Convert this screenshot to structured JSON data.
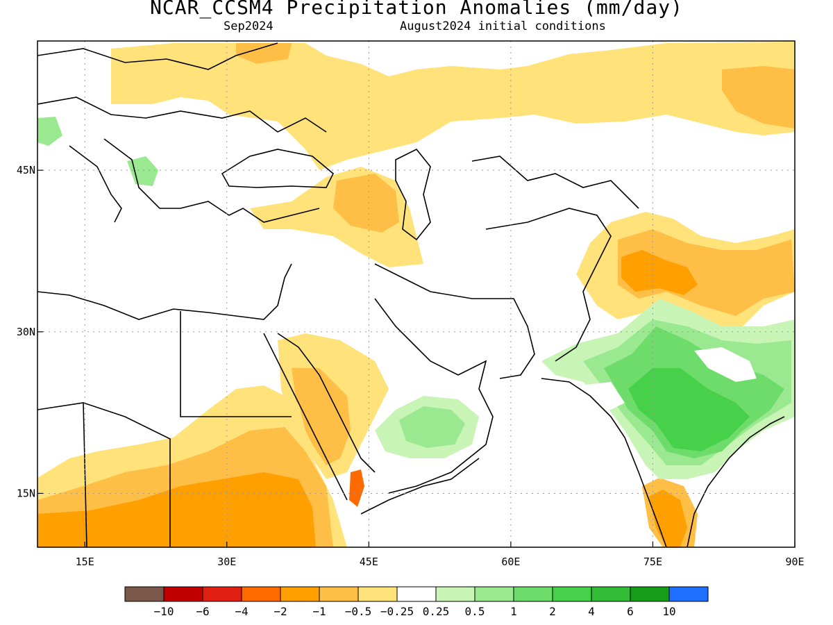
{
  "header": {
    "title": "NCAR_CCSM4 Precipitation Anomalies (mm/day)",
    "valid_month": "Sep2024",
    "init_conditions": "August2024 initial conditions"
  },
  "map": {
    "lon_range": [
      10,
      90
    ],
    "lat_range": [
      10,
      57
    ],
    "lon_ticks": [
      {
        "value": 15,
        "label": "15E"
      },
      {
        "value": 30,
        "label": "30E"
      },
      {
        "value": 45,
        "label": "45E"
      },
      {
        "value": 60,
        "label": "60E"
      },
      {
        "value": 75,
        "label": "75E"
      },
      {
        "value": 90,
        "label": "90E"
      }
    ],
    "lat_ticks": [
      {
        "value": 45,
        "label": "45N"
      },
      {
        "value": 30,
        "label": "30N"
      },
      {
        "value": 15,
        "label": "15N"
      }
    ],
    "grid": true
  },
  "colorbar": {
    "colors": [
      "#7a5849",
      "#c00000",
      "#e02010",
      "#ff6a00",
      "#ffa000",
      "#ffbe45",
      "#ffe27a",
      "#ffffff",
      "#c8f5b5",
      "#9ae890",
      "#6edc6a",
      "#47d14b",
      "#31bb36",
      "#159d18",
      "#1e6eff"
    ],
    "labels": [
      "-10",
      "-6",
      "-4",
      "-2",
      "-1",
      "-0.5",
      "-0.25",
      "0.25",
      "0.5",
      "1",
      "2",
      "4",
      "6",
      "10"
    ]
  }
}
